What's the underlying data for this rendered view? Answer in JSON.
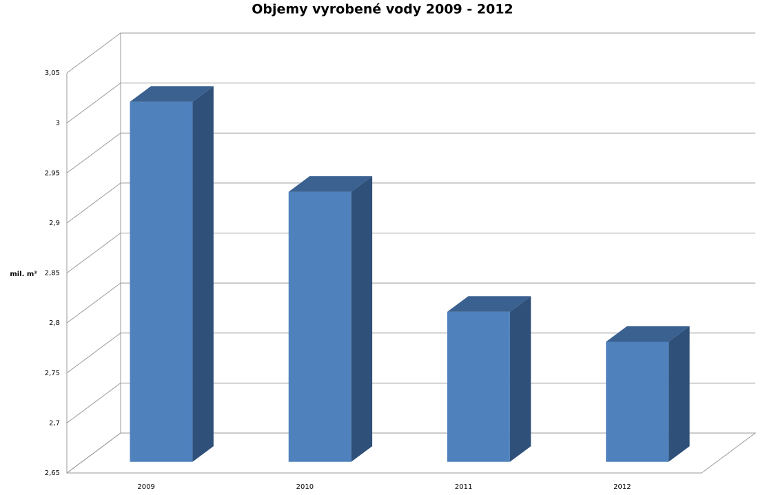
{
  "chart_data": {
    "type": "bar3d",
    "title": "Objemy vyrobené vody 2009 - 2012",
    "y_label": "mil. m³",
    "categories": [
      "2009",
      "2010",
      "2011",
      "2012"
    ],
    "values": [
      3.01,
      2.92,
      2.8,
      2.77
    ],
    "color": "#4f81bd",
    "ylim": [
      2.65,
      3.05
    ],
    "yticks": [
      {
        "value": 2.65,
        "label": "2,65"
      },
      {
        "value": 2.7,
        "label": "2,7"
      },
      {
        "value": 2.75,
        "label": "2,75"
      },
      {
        "value": 2.8,
        "label": "2,8"
      },
      {
        "value": 2.85,
        "label": "2,85"
      },
      {
        "value": 2.9,
        "label": "2,9"
      },
      {
        "value": 2.95,
        "label": "2,95"
      },
      3,
      {
        "value": 3.05,
        "label": "3,05"
      }
    ],
    "grid": true
  }
}
